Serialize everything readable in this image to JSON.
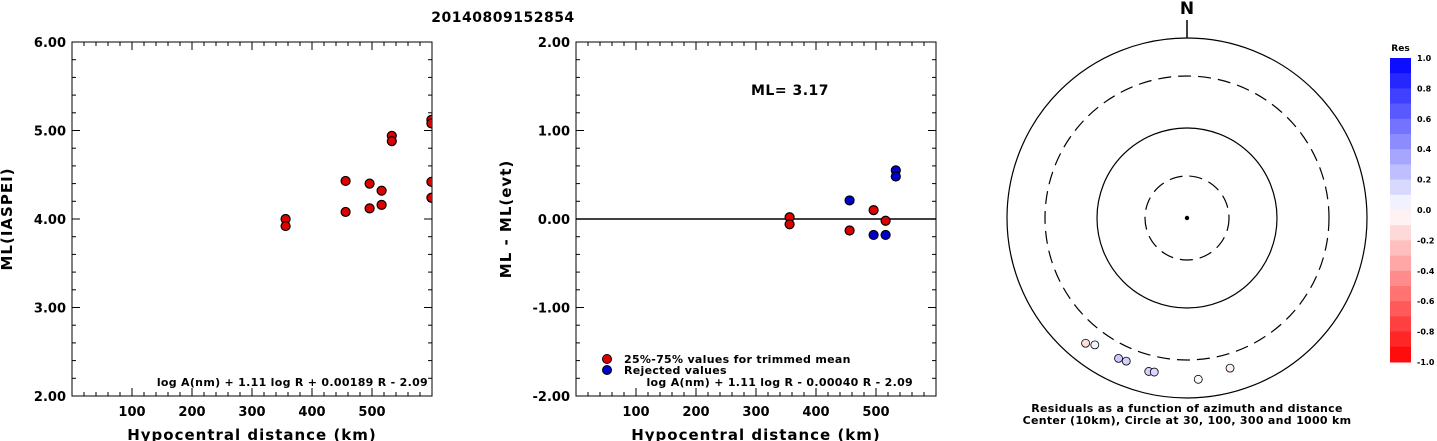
{
  "event_id": "20140809152854",
  "chart_data": [
    {
      "type": "scatter",
      "name": "ml-vs-distance",
      "xlabel": "Hypocentral distance (km)",
      "ylabel": "ML(IASPEI)",
      "xlim": [
        0,
        600
      ],
      "ylim": [
        2,
        6
      ],
      "xticks": [
        100,
        200,
        300,
        400,
        500
      ],
      "yticks": [
        "2.00",
        "3.00",
        "4.00",
        "5.00",
        "6.00"
      ],
      "formula": "log A(nm) + 1.11 log R + 0.00189 R - 2.09",
      "points": [
        {
          "x": 356,
          "y": 4.0,
          "color": "#dd0000"
        },
        {
          "x": 356,
          "y": 3.92,
          "color": "#dd0000"
        },
        {
          "x": 456,
          "y": 4.43,
          "color": "#dd0000"
        },
        {
          "x": 456,
          "y": 4.08,
          "color": "#dd0000"
        },
        {
          "x": 496,
          "y": 4.4,
          "color": "#dd0000"
        },
        {
          "x": 496,
          "y": 4.12,
          "color": "#dd0000"
        },
        {
          "x": 516,
          "y": 4.32,
          "color": "#dd0000"
        },
        {
          "x": 516,
          "y": 4.16,
          "color": "#dd0000"
        },
        {
          "x": 533,
          "y": 4.94,
          "color": "#dd0000"
        },
        {
          "x": 533,
          "y": 4.88,
          "color": "#dd0000"
        },
        {
          "x": 599,
          "y": 5.12,
          "color": "#dd0000"
        },
        {
          "x": 599,
          "y": 5.08,
          "color": "#dd0000"
        },
        {
          "x": 599,
          "y": 4.42,
          "color": "#dd0000"
        },
        {
          "x": 599,
          "y": 4.24,
          "color": "#dd0000"
        }
      ]
    },
    {
      "type": "scatter",
      "name": "residual-vs-distance",
      "xlabel": "Hypocentral distance (km)",
      "ylabel": "ML - ML(evt)",
      "xlim": [
        0,
        600
      ],
      "ylim": [
        -2,
        2
      ],
      "xticks": [
        100,
        200,
        300,
        400,
        500
      ],
      "yticks": [
        "-2.00",
        "-1.00",
        "0.00",
        "1.00",
        "2.00"
      ],
      "annotation": "ML= 3.17",
      "legend": [
        "25%-75% values for trimmed mean",
        "Rejected values"
      ],
      "legend_colors": [
        "#dd0000",
        "#0000cc"
      ],
      "formula": "log A(nm) + 1.11 log R - 0.00040 R - 2.09",
      "points": [
        {
          "x": 356,
          "y": 0.02,
          "color": "#dd0000"
        },
        {
          "x": 356,
          "y": -0.06,
          "color": "#dd0000"
        },
        {
          "x": 456,
          "y": 0.21,
          "color": "#0000cc"
        },
        {
          "x": 456,
          "y": -0.13,
          "color": "#dd0000"
        },
        {
          "x": 496,
          "y": 0.1,
          "color": "#dd0000"
        },
        {
          "x": 496,
          "y": -0.18,
          "color": "#0000cc"
        },
        {
          "x": 516,
          "y": -0.02,
          "color": "#dd0000"
        },
        {
          "x": 516,
          "y": -0.18,
          "color": "#0000cc"
        },
        {
          "x": 533,
          "y": 0.55,
          "color": "#0000cc"
        },
        {
          "x": 533,
          "y": 0.48,
          "color": "#0000cc"
        }
      ]
    },
    {
      "type": "polar",
      "name": "residual-map",
      "north_label": "N",
      "caption_line1": "Residuals as a function of azimuth and distance",
      "caption_line2": "Center (10km), Circle at 30, 100, 300 and 1000 km",
      "rings_km": [
        30,
        100,
        300,
        1000
      ],
      "center_km": 10,
      "stations": [
        {
          "azimuth_deg": 216,
          "distance_km": 480,
          "residual": 0.05
        },
        {
          "azimuth_deg": 219,
          "distance_km": 550,
          "residual": -0.13
        },
        {
          "azimuth_deg": 206,
          "distance_km": 470,
          "residual": 0.21
        },
        {
          "azimuth_deg": 203,
          "distance_km": 460,
          "residual": 0.18
        },
        {
          "azimuth_deg": 194,
          "distance_km": 500,
          "residual": 0.18
        },
        {
          "azimuth_deg": 192,
          "distance_km": 490,
          "residual": 0.15
        },
        {
          "azimuth_deg": 176,
          "distance_km": 560,
          "residual": -0.02
        },
        {
          "azimuth_deg": 164,
          "distance_km": 470,
          "residual": -0.06
        }
      ],
      "colorbar": {
        "title": "Res",
        "labels": [
          "1.0",
          "0.8",
          "0.6",
          "0.4",
          "0.2",
          "0.0",
          "-0.2",
          "-0.4",
          "-0.6",
          "-0.8",
          "-1.0"
        ]
      }
    }
  ]
}
